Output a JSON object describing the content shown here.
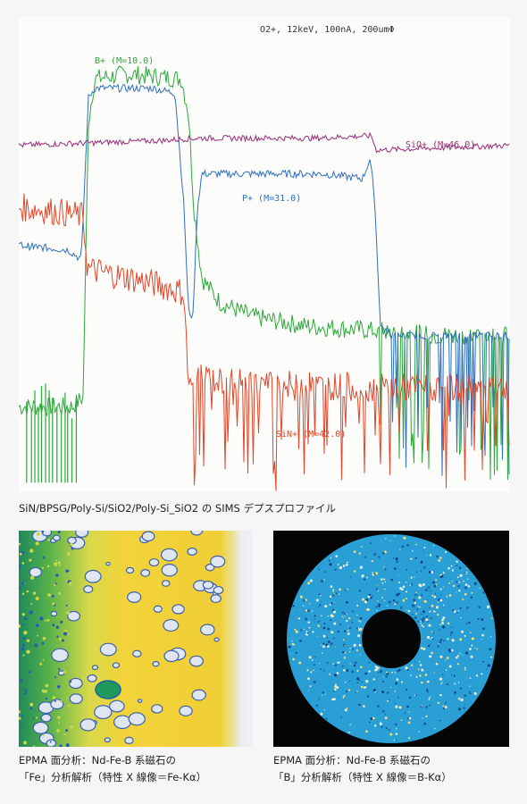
{
  "chart_data": {
    "type": "line",
    "header": "O2+, 12keV, 100nA, 200umΦ",
    "series": [
      {
        "name": "B+ (M=10.0)",
        "color": "#2aa838",
        "points": [
          [
            0,
            0.18
          ],
          [
            60,
            0.18
          ],
          [
            72,
            0.2
          ],
          [
            78,
            0.78
          ],
          [
            85,
            0.87
          ],
          [
            120,
            0.88
          ],
          [
            182,
            0.87
          ],
          [
            190,
            0.8
          ],
          [
            196,
            0.6
          ],
          [
            205,
            0.45
          ],
          [
            225,
            0.4
          ],
          [
            260,
            0.37
          ],
          [
            320,
            0.35
          ],
          [
            400,
            0.34
          ],
          [
            470,
            0.33
          ],
          [
            550,
            0.33
          ]
        ],
        "noise": 0.02,
        "dropouts_after": 400
      },
      {
        "name": "P+ (M=31.0)",
        "color": "#2e6fc0",
        "points": [
          [
            0,
            0.52
          ],
          [
            55,
            0.51
          ],
          [
            70,
            0.49
          ],
          [
            78,
            0.83
          ],
          [
            85,
            0.85
          ],
          [
            150,
            0.85
          ],
          [
            175,
            0.84
          ],
          [
            185,
            0.6
          ],
          [
            190,
            0.38
          ],
          [
            195,
            0.37
          ],
          [
            200,
            0.6
          ],
          [
            205,
            0.67
          ],
          [
            340,
            0.67
          ],
          [
            385,
            0.66
          ],
          [
            393,
            0.7
          ],
          [
            398,
            0.63
          ],
          [
            405,
            0.35
          ],
          [
            420,
            0.33
          ],
          [
            550,
            0.33
          ]
        ],
        "noise": 0.008,
        "dropouts_after": 410
      },
      {
        "name": "SiO+ (M=46.0)",
        "color": "#9a2d7a",
        "points": [
          [
            0,
            0.73
          ],
          [
            80,
            0.735
          ],
          [
            160,
            0.74
          ],
          [
            200,
            0.745
          ],
          [
            260,
            0.745
          ],
          [
            330,
            0.745
          ],
          [
            395,
            0.75
          ],
          [
            400,
            0.72
          ],
          [
            480,
            0.725
          ],
          [
            550,
            0.73
          ]
        ],
        "noise": 0.006
      },
      {
        "name": "SiN+ (M=42.0)",
        "color": "#e0472a",
        "points": [
          [
            0,
            0.6
          ],
          [
            45,
            0.59
          ],
          [
            72,
            0.58
          ],
          [
            77,
            0.47
          ],
          [
            100,
            0.46
          ],
          [
            150,
            0.44
          ],
          [
            185,
            0.42
          ],
          [
            190,
            0.22
          ],
          [
            200,
            0.24
          ],
          [
            240,
            0.23
          ],
          [
            400,
            0.22
          ],
          [
            550,
            0.22
          ]
        ],
        "noise": 0.03,
        "dropouts_after": 190
      }
    ],
    "xlim": [
      0,
      550
    ],
    "ylim": [
      0,
      1
    ]
  },
  "captions": {
    "sims": "SiN/BPSG/Poly-Si/SiO2/Poly-Si_SiO2 の SIMS デプスプロファイル",
    "fe_line1": "EPMA 面分析：Nd-Fe-B 系磁石の",
    "fe_line2": "「Fe」分析解析（特性 X 線像＝Fe-Kα）",
    "b_line1": "EPMA 面分析：Nd-Fe-B 系磁石の",
    "b_line2": "「B」分析解析（特性 X 線像＝B-Kα）"
  },
  "images": {
    "fe_map": "epma-fe-kalpha-map",
    "b_map": "epma-b-kalpha-ring-map"
  }
}
